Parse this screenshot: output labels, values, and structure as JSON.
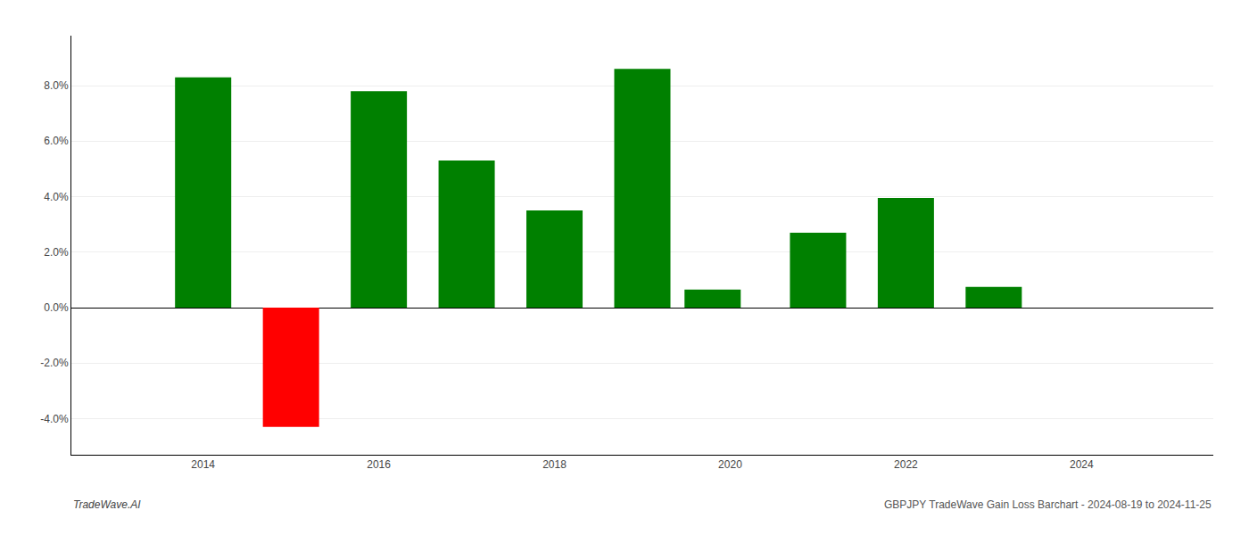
{
  "chart_data": {
    "type": "bar",
    "x": [
      2014,
      2015,
      2016,
      2017,
      2018,
      2019,
      2019.8,
      2021,
      2022,
      2023
    ],
    "values": [
      0.083,
      -0.043,
      0.078,
      0.053,
      0.035,
      0.086,
      0.0065,
      0.027,
      0.0395,
      0.0075
    ],
    "colors": [
      "#008000",
      "#ff0000",
      "#008000",
      "#008000",
      "#008000",
      "#008000",
      "#008000",
      "#008000",
      "#008000",
      "#008000"
    ],
    "xlim": [
      2012.5,
      2025.5
    ],
    "xticks": [
      2014,
      2016,
      2018,
      2020,
      2022,
      2024
    ],
    "ylim": [
      -0.053,
      0.098
    ],
    "yticks": [
      {
        "value": -0.04,
        "label": "-4.0%"
      },
      {
        "value": -0.02,
        "label": "-2.0%"
      },
      {
        "value": 0.0,
        "label": "0.0%"
      },
      {
        "value": 0.02,
        "label": "2.0%"
      },
      {
        "value": 0.04,
        "label": "4.0%"
      },
      {
        "value": 0.06,
        "label": "6.0%"
      },
      {
        "value": 0.08,
        "label": "8.0%"
      }
    ],
    "grid": true,
    "annotations": [
      "TradeWave.AI",
      "GBPJPY TradeWave Gain Loss Barchart - 2024-08-19 to 2024-11-25"
    ]
  }
}
